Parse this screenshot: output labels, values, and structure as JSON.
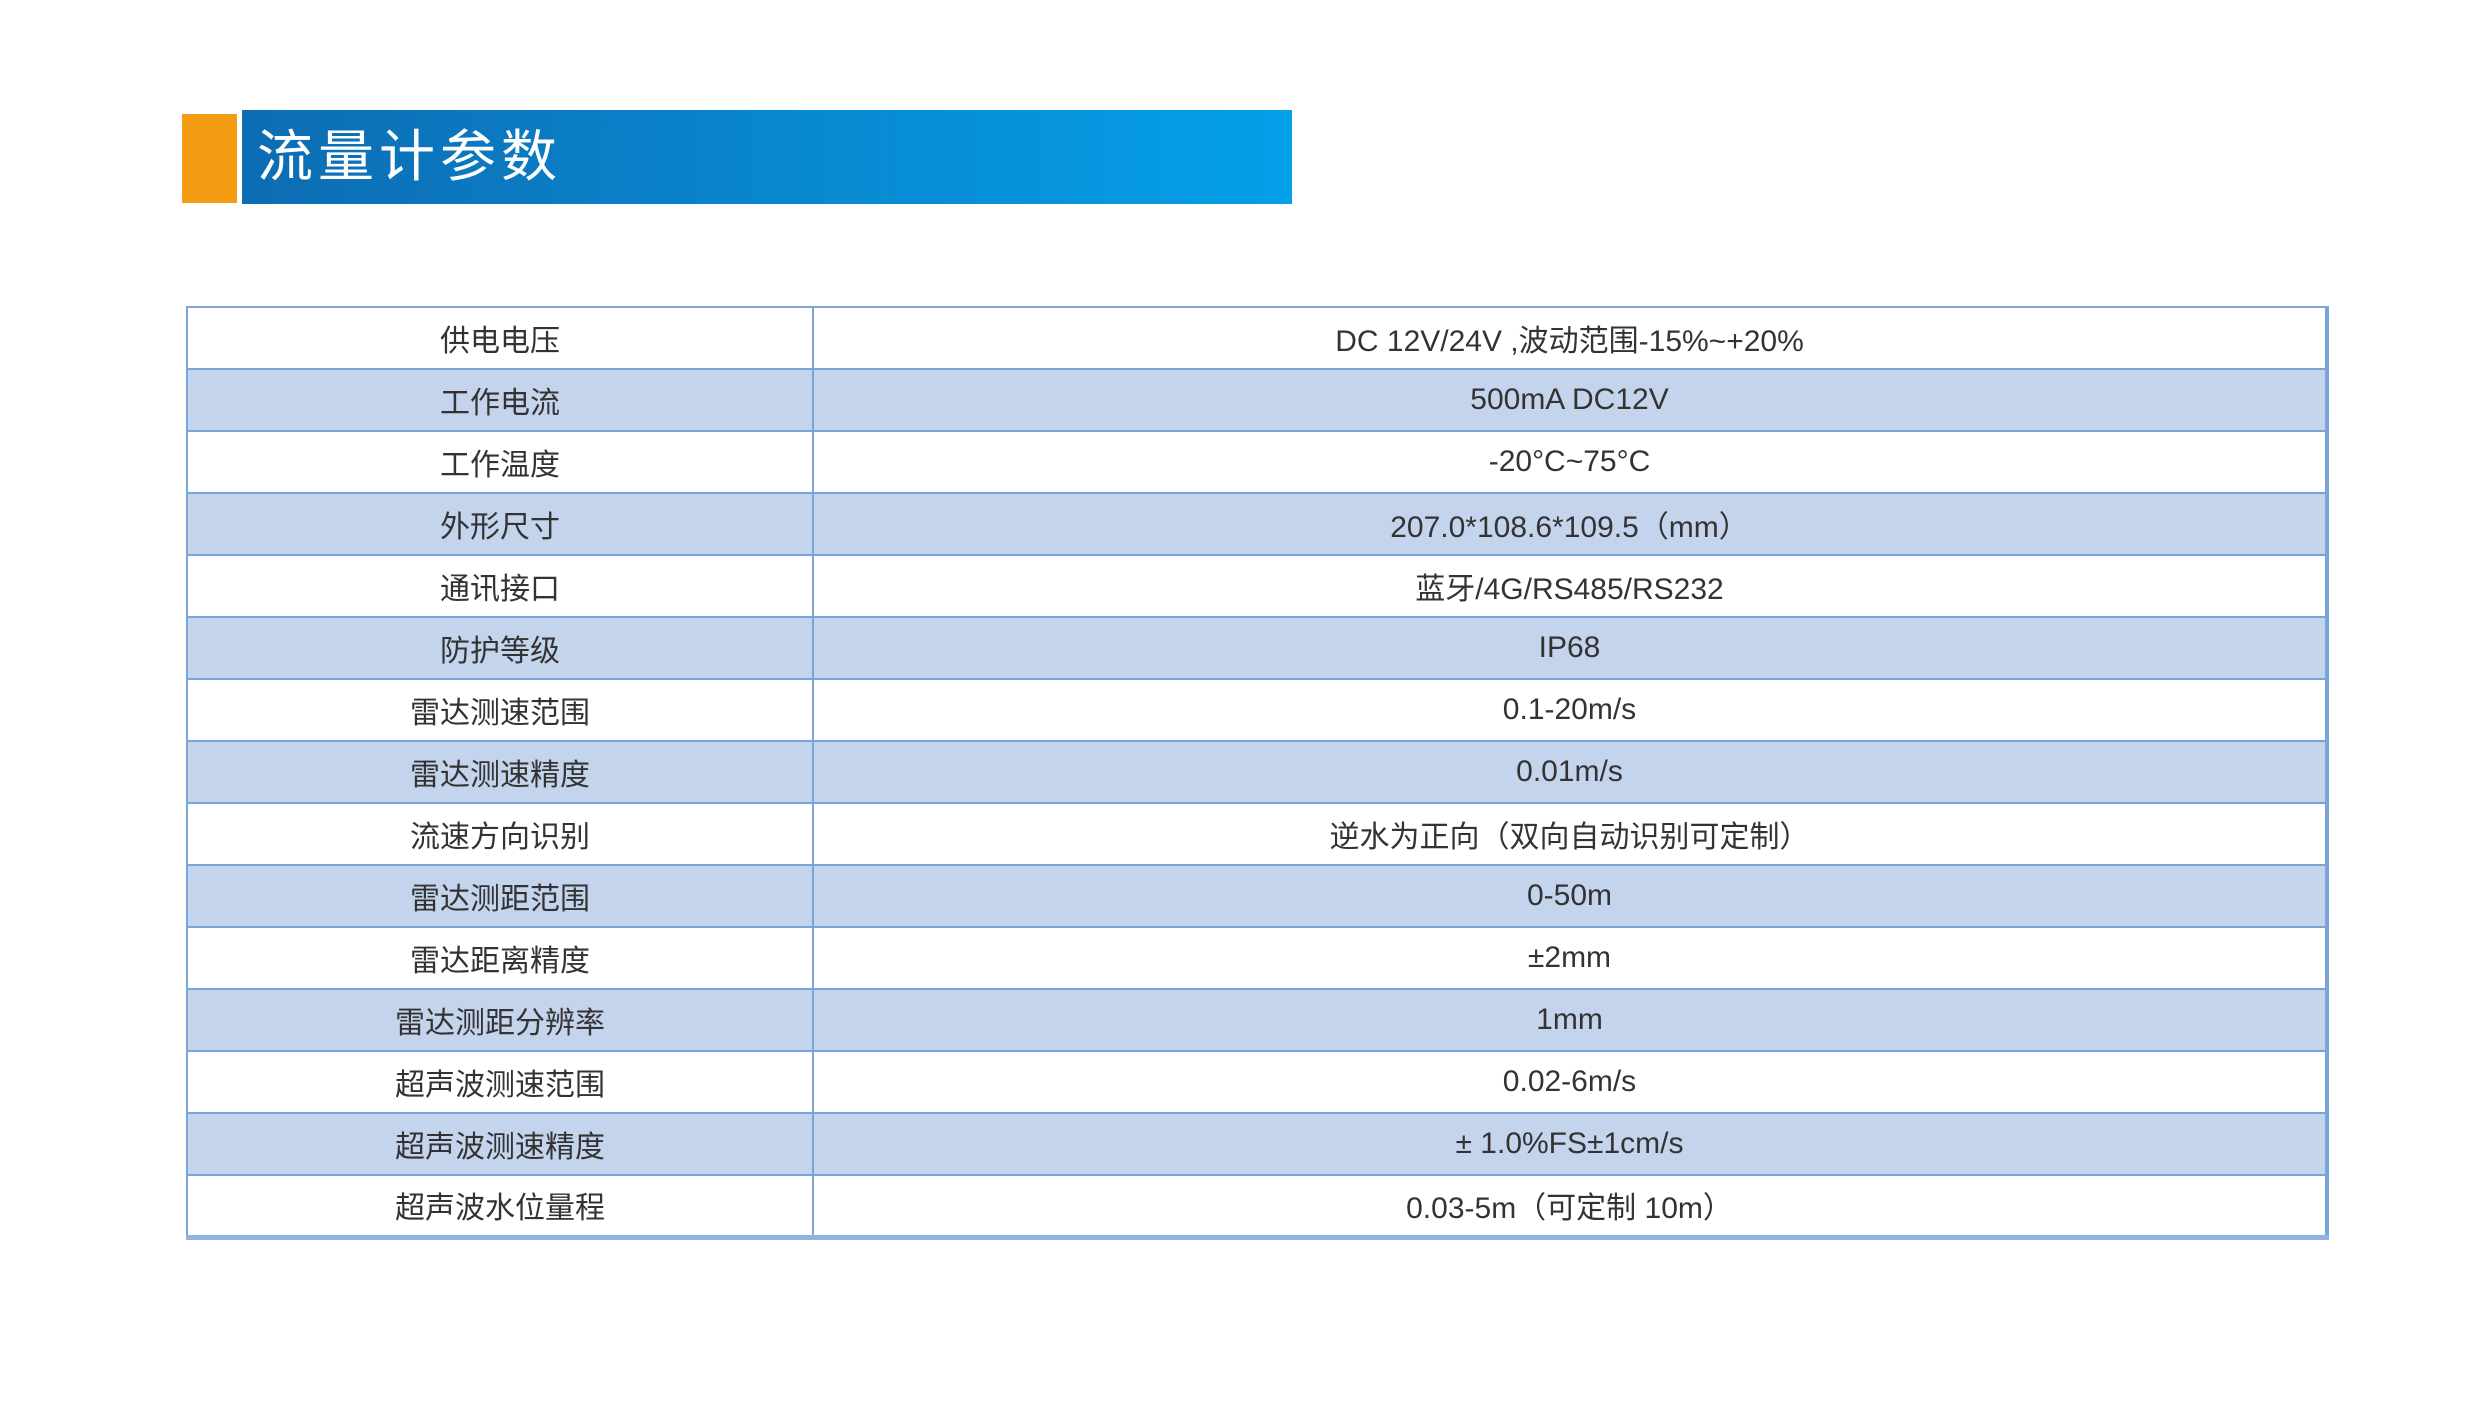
{
  "colors": {
    "accent": "#f39c11",
    "banner_gradient_start": "#0d6cb3",
    "banner_gradient_end": "#04a0e9",
    "banner_text": "#ffffff",
    "table_border": "#7ba4d9",
    "table_alt_row": "#c5d4ed",
    "table_text": "#333333"
  },
  "banner": {
    "title": "流量计参数"
  },
  "table": {
    "rows": [
      {
        "label": "供电电压",
        "value": "DC 12V/24V ,波动范围-15%~+20%"
      },
      {
        "label": "工作电流",
        "value": "500mA  DC12V"
      },
      {
        "label": "工作温度",
        "value": "-20°C~75°C"
      },
      {
        "label": "外形尺寸",
        "value": "207.0*108.6*109.5（mm）"
      },
      {
        "label": "通讯接口",
        "value": "蓝牙/4G/RS485/RS232"
      },
      {
        "label": "防护等级",
        "value": "IP68"
      },
      {
        "label": "雷达测速范围",
        "value": "0.1-20m/s"
      },
      {
        "label": "雷达测速精度",
        "value": "0.01m/s"
      },
      {
        "label": "流速方向识别",
        "value": "逆水为正向（双向自动识别可定制）"
      },
      {
        "label": "雷达测距范围",
        "value": "0-50m"
      },
      {
        "label": "雷达距离精度",
        "value": "±2mm"
      },
      {
        "label": "雷达测距分辨率",
        "value": "1mm"
      },
      {
        "label": "超声波测速范围",
        "value": "0.02-6m/s"
      },
      {
        "label": "超声波测速精度",
        "value": "± 1.0%FS±1cm/s"
      },
      {
        "label": "超声波水位量程",
        "value": "0.03-5m（可定制 10m）"
      }
    ]
  }
}
